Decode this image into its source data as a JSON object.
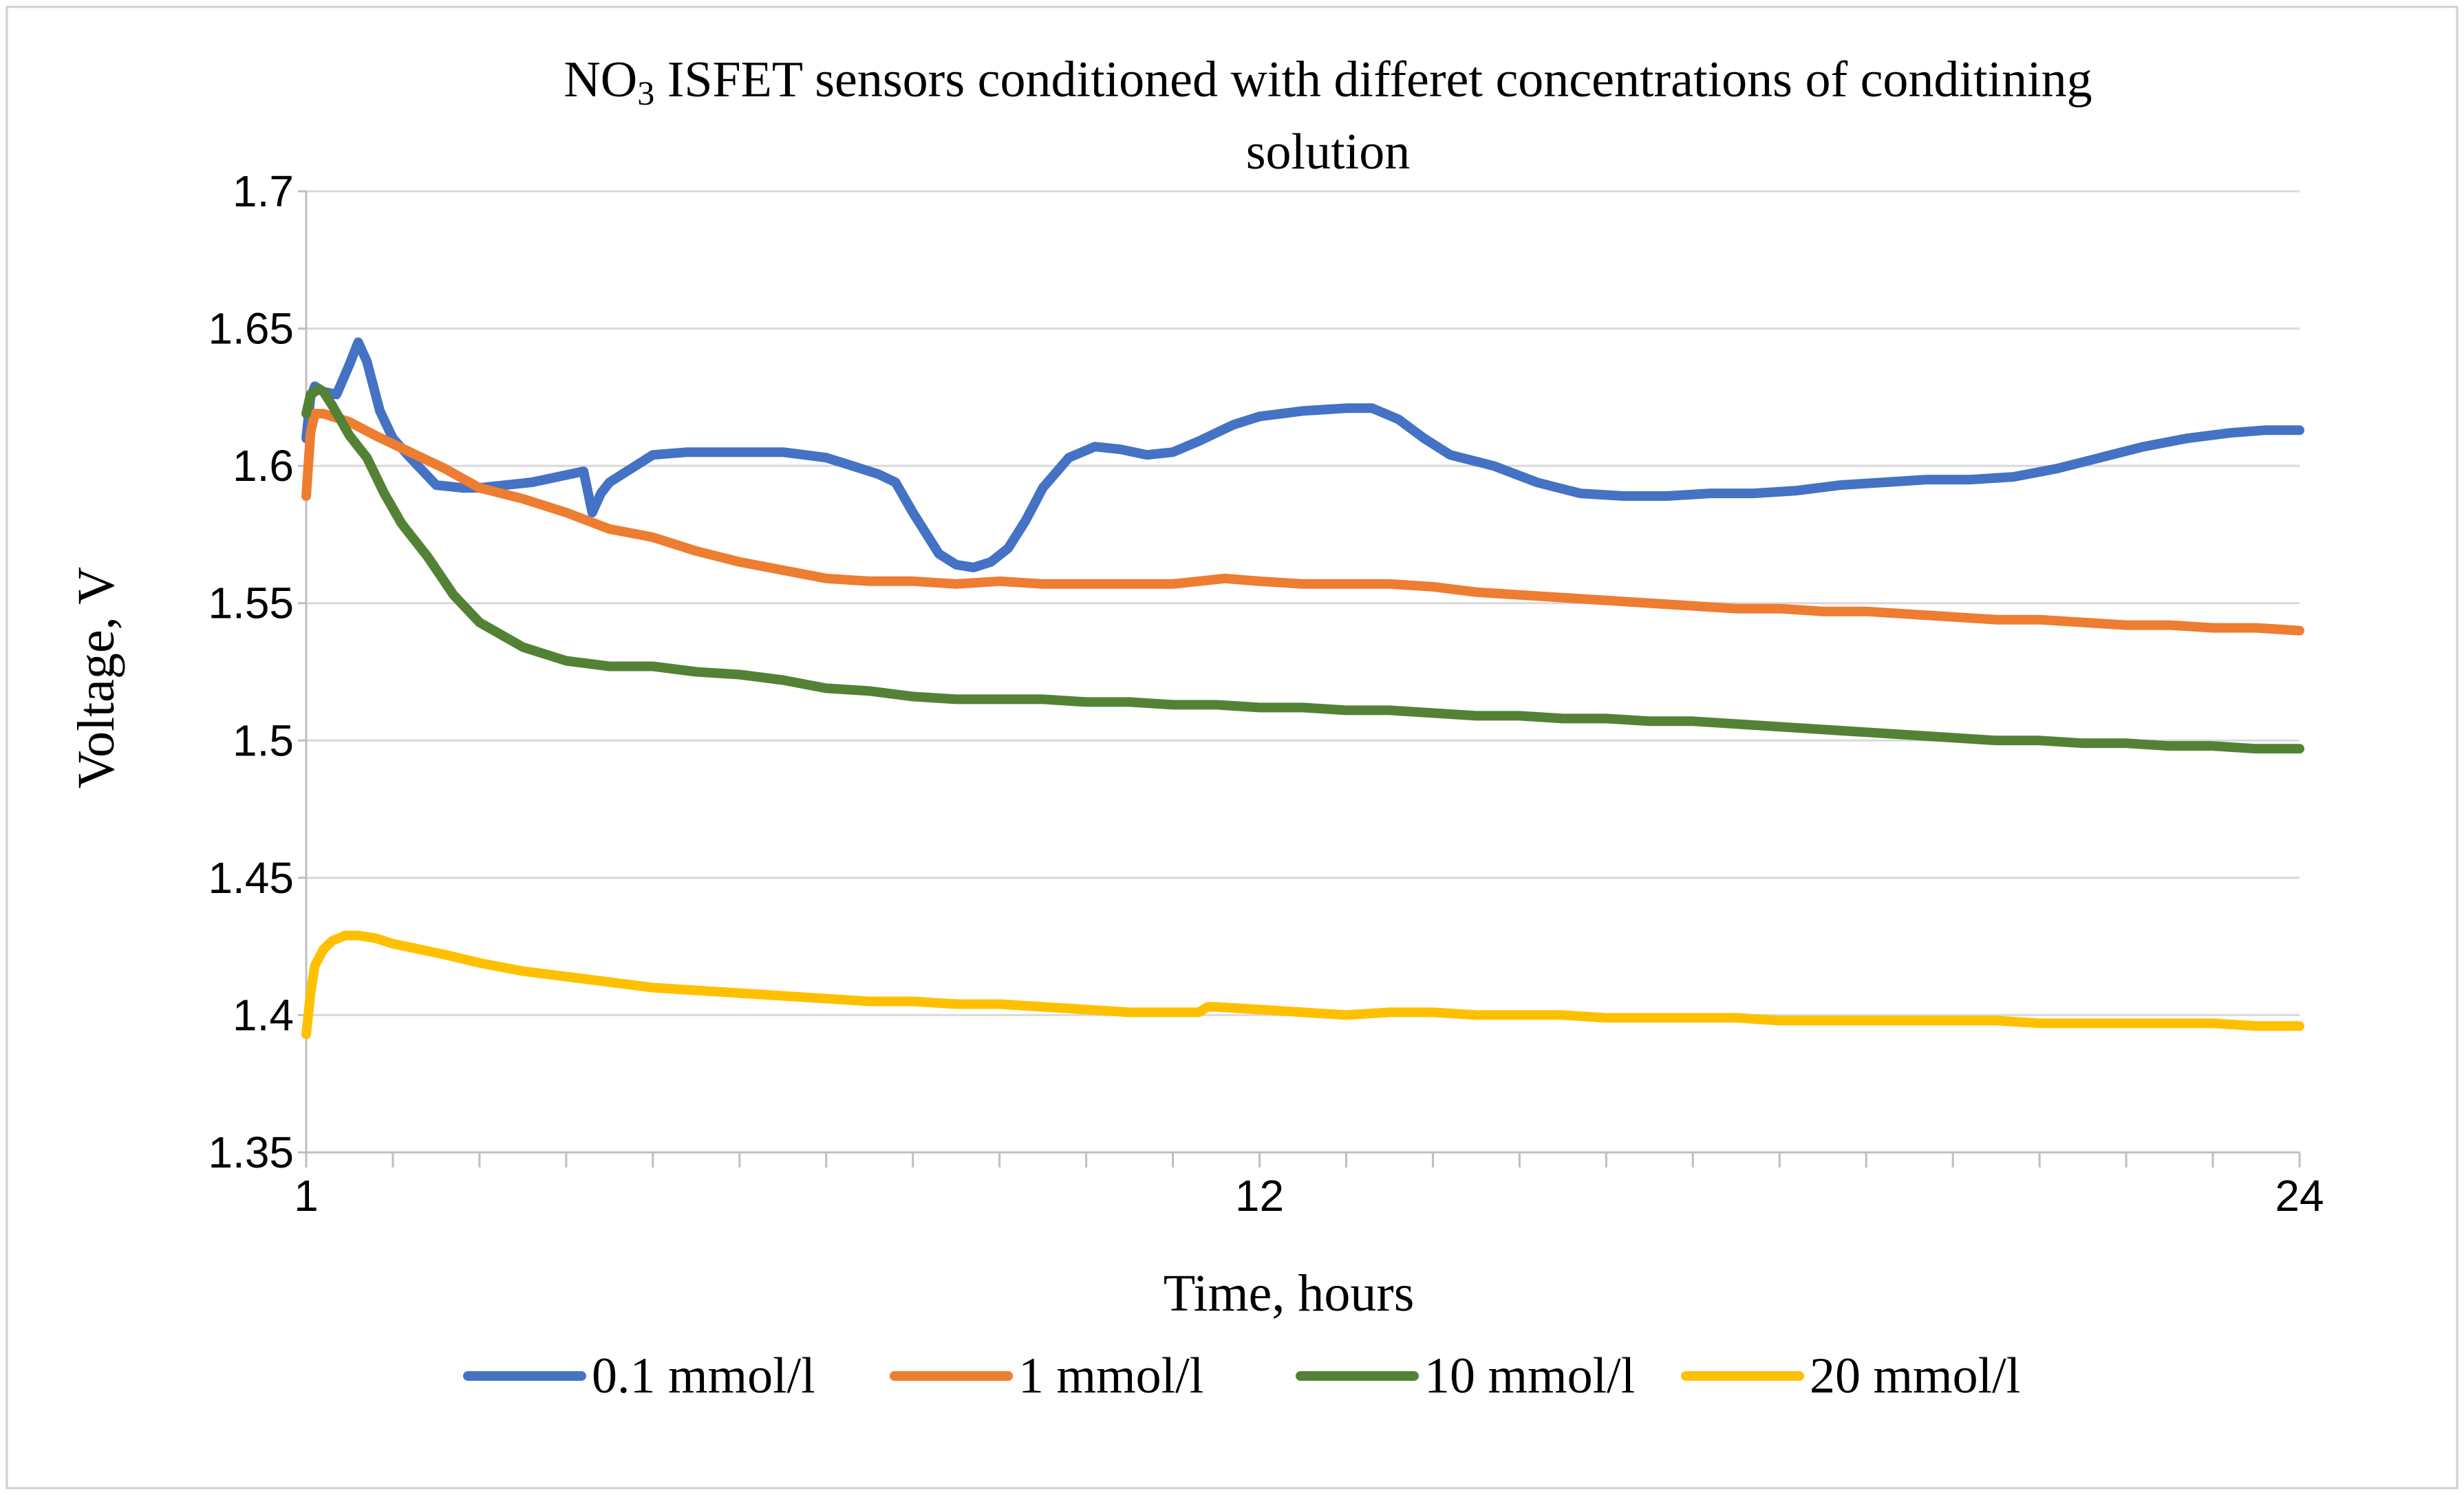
{
  "chart_data": {
    "type": "line",
    "title_main": "NO",
    "title_subscript": "3",
    "title_rest": " ISFET sensors conditioned with differet concentrations of conditining",
    "title_line2": "solution",
    "xlabel": "Time, hours",
    "ylabel": "Voltage, V",
    "x_ticks": [
      "1",
      "12",
      "24"
    ],
    "x_tick_values": [
      1,
      12,
      24
    ],
    "xlim": [
      1,
      24
    ],
    "ylim": [
      1.35,
      1.7
    ],
    "y_ticks": [
      "1.35",
      "1.4",
      "1.45",
      "1.5",
      "1.55",
      "1.6",
      "1.65",
      "1.7"
    ],
    "y_tick_values": [
      1.35,
      1.4,
      1.45,
      1.5,
      1.55,
      1.6,
      1.65,
      1.7
    ],
    "grid": "horizontal",
    "legend_position": "bottom",
    "series": [
      {
        "name": "0.1 mmol/l",
        "color": "#4472C4",
        "x": [
          1.0,
          1.05,
          1.1,
          1.2,
          1.35,
          1.5,
          1.6,
          1.7,
          1.85,
          2.0,
          2.2,
          2.5,
          2.8,
          3.0,
          3.3,
          3.6,
          3.9,
          4.2,
          4.3,
          4.4,
          4.5,
          4.7,
          5.0,
          5.4,
          6.0,
          6.5,
          7.0,
          7.3,
          7.6,
          7.8,
          8.0,
          8.3,
          8.5,
          8.7,
          8.9,
          9.1,
          9.3,
          9.5,
          9.8,
          10.1,
          10.4,
          10.7,
          11.0,
          11.3,
          11.7,
          12.0,
          12.5,
          13.0,
          13.3,
          13.6,
          13.9,
          14.2,
          14.7,
          15.2,
          15.7,
          16.2,
          16.7,
          17.2,
          17.7,
          18.2,
          18.7,
          19.2,
          19.7,
          20.2,
          20.7,
          21.2,
          21.7,
          22.2,
          22.7,
          23.2,
          23.6,
          24.0
        ],
        "values": [
          1.61,
          1.625,
          1.629,
          1.627,
          1.626,
          1.637,
          1.645,
          1.638,
          1.62,
          1.61,
          1.603,
          1.593,
          1.592,
          1.592,
          1.593,
          1.594,
          1.596,
          1.598,
          1.583,
          1.59,
          1.594,
          1.598,
          1.604,
          1.605,
          1.605,
          1.605,
          1.603,
          1.6,
          1.597,
          1.594,
          1.583,
          1.568,
          1.564,
          1.563,
          1.565,
          1.57,
          1.58,
          1.592,
          1.603,
          1.607,
          1.606,
          1.604,
          1.605,
          1.609,
          1.615,
          1.618,
          1.62,
          1.621,
          1.621,
          1.617,
          1.61,
          1.604,
          1.6,
          1.594,
          1.59,
          1.589,
          1.589,
          1.59,
          1.59,
          1.591,
          1.593,
          1.594,
          1.595,
          1.595,
          1.596,
          1.599,
          1.603,
          1.607,
          1.61,
          1.612,
          1.613,
          1.613
        ]
      },
      {
        "name": "1 mmol/l",
        "color": "#ED7D31",
        "x": [
          1.0,
          1.05,
          1.1,
          1.2,
          1.5,
          1.8,
          2.2,
          2.6,
          3.0,
          3.5,
          4.0,
          4.5,
          5.0,
          5.5,
          6.0,
          6.5,
          7.0,
          7.5,
          8.0,
          8.5,
          9.0,
          9.5,
          10.0,
          10.5,
          11.0,
          11.3,
          11.6,
          12.0,
          12.5,
          13.0,
          13.5,
          14.0,
          14.5,
          15.0,
          15.5,
          16.0,
          16.5,
          17.0,
          17.5,
          18.0,
          18.5,
          19.0,
          19.5,
          20.0,
          20.5,
          21.0,
          21.5,
          22.0,
          22.5,
          23.0,
          23.5,
          24.0
        ],
        "values": [
          1.589,
          1.612,
          1.619,
          1.619,
          1.616,
          1.611,
          1.605,
          1.599,
          1.592,
          1.588,
          1.583,
          1.577,
          1.574,
          1.569,
          1.565,
          1.562,
          1.559,
          1.558,
          1.558,
          1.557,
          1.558,
          1.557,
          1.557,
          1.557,
          1.557,
          1.558,
          1.559,
          1.558,
          1.557,
          1.557,
          1.557,
          1.556,
          1.554,
          1.553,
          1.552,
          1.551,
          1.55,
          1.549,
          1.548,
          1.548,
          1.547,
          1.547,
          1.546,
          1.545,
          1.544,
          1.544,
          1.543,
          1.542,
          1.542,
          1.541,
          1.541,
          1.54
        ]
      },
      {
        "name": "10 mmol/l",
        "color": "#548235",
        "x": [
          1.0,
          1.05,
          1.1,
          1.15,
          1.2,
          1.3,
          1.5,
          1.7,
          1.9,
          2.1,
          2.4,
          2.7,
          3.0,
          3.5,
          4.0,
          4.5,
          5.0,
          5.5,
          6.0,
          6.5,
          7.0,
          7.5,
          8.0,
          8.5,
          9.0,
          9.5,
          10.0,
          10.5,
          11.0,
          11.5,
          12.0,
          12.5,
          13.0,
          13.5,
          14.0,
          14.5,
          15.0,
          15.5,
          16.0,
          16.5,
          17.0,
          17.5,
          18.0,
          18.5,
          19.0,
          19.5,
          20.0,
          20.5,
          21.0,
          21.5,
          22.0,
          22.5,
          23.0,
          23.5,
          24.0
        ],
        "values": [
          1.619,
          1.626,
          1.627,
          1.628,
          1.627,
          1.622,
          1.611,
          1.603,
          1.59,
          1.579,
          1.567,
          1.553,
          1.543,
          1.534,
          1.529,
          1.527,
          1.527,
          1.525,
          1.524,
          1.522,
          1.519,
          1.518,
          1.516,
          1.515,
          1.515,
          1.515,
          1.514,
          1.514,
          1.513,
          1.513,
          1.512,
          1.512,
          1.511,
          1.511,
          1.51,
          1.509,
          1.509,
          1.508,
          1.508,
          1.507,
          1.507,
          1.506,
          1.505,
          1.504,
          1.503,
          1.502,
          1.501,
          1.5,
          1.5,
          1.499,
          1.499,
          1.498,
          1.498,
          1.497,
          1.497
        ]
      },
      {
        "name": "20 mmol/l",
        "color": "#FFC000",
        "x": [
          1.0,
          1.05,
          1.1,
          1.2,
          1.3,
          1.45,
          1.6,
          1.8,
          2.0,
          2.3,
          2.6,
          3.0,
          3.5,
          4.0,
          4.5,
          5.0,
          5.5,
          6.0,
          6.5,
          7.0,
          7.5,
          8.0,
          8.5,
          9.0,
          9.5,
          10.0,
          10.5,
          11.0,
          11.3,
          11.4,
          11.5,
          12.0,
          12.5,
          13.0,
          13.5,
          14.0,
          14.5,
          15.0,
          15.5,
          16.0,
          16.5,
          17.0,
          17.5,
          18.0,
          18.5,
          19.0,
          19.5,
          20.0,
          20.5,
          21.0,
          21.5,
          22.0,
          22.5,
          23.0,
          23.5,
          24.0
        ],
        "values": [
          1.393,
          1.408,
          1.418,
          1.424,
          1.427,
          1.429,
          1.429,
          1.428,
          1.426,
          1.424,
          1.422,
          1.419,
          1.416,
          1.414,
          1.412,
          1.41,
          1.409,
          1.408,
          1.407,
          1.406,
          1.405,
          1.405,
          1.404,
          1.404,
          1.403,
          1.402,
          1.401,
          1.401,
          1.401,
          1.403,
          1.403,
          1.402,
          1.401,
          1.4,
          1.401,
          1.401,
          1.4,
          1.4,
          1.4,
          1.399,
          1.399,
          1.399,
          1.399,
          1.398,
          1.398,
          1.398,
          1.398,
          1.398,
          1.398,
          1.397,
          1.397,
          1.397,
          1.397,
          1.397,
          1.396,
          1.396
        ]
      }
    ]
  }
}
